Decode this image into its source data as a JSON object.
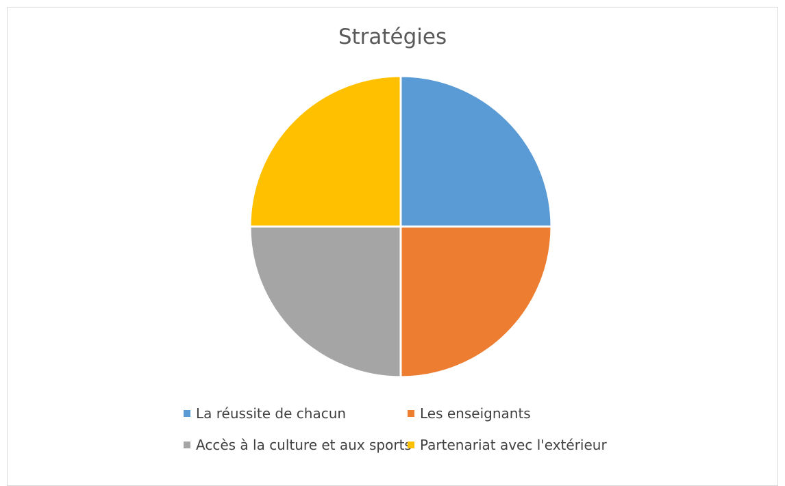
{
  "chart_data": {
    "type": "pie",
    "title": "Stratégies",
    "categories": [
      "La réussite de chacun",
      "Les enseignants",
      "Accès à la culture et aux sports",
      "Partenariat avec l'extérieur"
    ],
    "values": [
      25,
      25,
      25,
      25
    ],
    "colors": [
      "#5B9BD5",
      "#ED7D31",
      "#A5A5A5",
      "#FFC000"
    ],
    "legend_position": "bottom"
  }
}
